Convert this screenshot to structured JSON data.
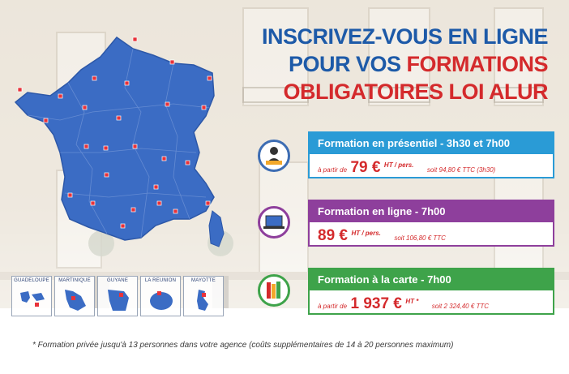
{
  "heading": {
    "line1": "INSCRIVEZ-VOUS EN LIGNE",
    "line2_prefix": "POUR VOS ",
    "line2_highlight": "FORMATIONS",
    "line3": "OBLIGATOIRES LOI ALUR"
  },
  "colors": {
    "heading_blue": "#1d5aa8",
    "heading_red": "#d42a2c",
    "offer1": "#2a9bd6",
    "offer2": "#8e3f9c",
    "offer3": "#3ea34a",
    "map": "#3b6cc4",
    "price": "#d42a2c"
  },
  "map": {
    "territories": [
      "GUADELOUPE",
      "MARTINIQUE",
      "GUYANE",
      "LA REUNION",
      "MAYOTTE"
    ]
  },
  "offers": [
    {
      "icon": "presenter-icon",
      "title": "Formation en présentiel - 3h30 et 7h00",
      "price_prefix": "à partir de",
      "price": "79 €",
      "unit": "HT / pers.",
      "ttc": "soit 94,80 € TTC (3h30)"
    },
    {
      "icon": "laptop-icon",
      "title": "Formation en ligne - 7h00",
      "price_prefix": "",
      "price": "89 €",
      "unit": "HT / pers.",
      "ttc": "soit 106,80 € TTC"
    },
    {
      "icon": "books-icon",
      "title": "Formation à la carte - 7h00",
      "price_prefix": "à partir de",
      "price": "1 937 €",
      "unit": "HT *",
      "ttc": "soit 2 324,40 € TTC"
    }
  ],
  "footnote": "* Formation privée jusqu'à 13 personnes dans votre agence (coûts supplémentaires de 14 à 20 personnes maximum)"
}
